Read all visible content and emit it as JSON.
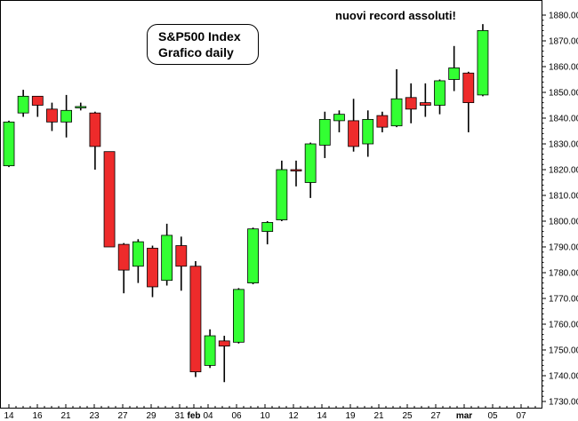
{
  "title_box": {
    "line1": "S&P500 Index",
    "line2": "Grafico daily"
  },
  "annotation": "nuovi record assoluti!",
  "chart_data": {
    "type": "candlestick",
    "y_axis": {
      "min": 1730,
      "max": 1880,
      "ticks": [
        1730,
        1740,
        1750,
        1760,
        1770,
        1780,
        1790,
        1800,
        1810,
        1820,
        1830,
        1840,
        1850,
        1860,
        1870,
        1880
      ],
      "position": "right",
      "format": "0.000"
    },
    "x_tick_labels": [
      "14",
      "16",
      "21",
      "23",
      "27",
      "29",
      "31",
      "feb",
      "04",
      "06",
      "10",
      "12",
      "14",
      "19",
      "21",
      "25",
      "27",
      "mar",
      "05",
      "07"
    ],
    "colors": {
      "up": "#33ff33",
      "down": "#ee2b2b",
      "wick": "#000000"
    },
    "candles": [
      {
        "o": 1821.5,
        "h": 1839.0,
        "l": 1821.0,
        "c": 1838.5
      },
      {
        "o": 1842.0,
        "h": 1851.0,
        "l": 1840.5,
        "c": 1848.5
      },
      {
        "o": 1848.5,
        "h": 1848.5,
        "l": 1840.5,
        "c": 1845.0
      },
      {
        "o": 1843.5,
        "h": 1846.0,
        "l": 1835.0,
        "c": 1838.5
      },
      {
        "o": 1838.5,
        "h": 1849.0,
        "l": 1832.5,
        "c": 1843.0
      },
      {
        "o": 1844.5,
        "h": 1846.0,
        "l": 1843.0,
        "c": 1844.5
      },
      {
        "o": 1842.0,
        "h": 1842.5,
        "l": 1820.0,
        "c": 1829.0
      },
      {
        "o": 1827.0,
        "h": 1827.0,
        "l": 1790.0,
        "c": 1790.0
      },
      {
        "o": 1791.0,
        "h": 1791.5,
        "l": 1772.0,
        "c": 1781.0
      },
      {
        "o": 1782.5,
        "h": 1793.0,
        "l": 1776.0,
        "c": 1792.0
      },
      {
        "o": 1789.5,
        "h": 1790.5,
        "l": 1770.5,
        "c": 1774.5
      },
      {
        "o": 1777.0,
        "h": 1799.0,
        "l": 1775.0,
        "c": 1794.5
      },
      {
        "o": 1790.5,
        "h": 1794.0,
        "l": 1773.0,
        "c": 1782.5
      },
      {
        "o": 1782.5,
        "h": 1784.5,
        "l": 1739.5,
        "c": 1741.5
      },
      {
        "o": 1744.0,
        "h": 1758.0,
        "l": 1743.0,
        "c": 1755.5
      },
      {
        "o": 1753.5,
        "h": 1755.5,
        "l": 1737.5,
        "c": 1751.5
      },
      {
        "o": 1753.0,
        "h": 1774.0,
        "l": 1752.5,
        "c": 1773.5
      },
      {
        "o": 1776.0,
        "h": 1797.5,
        "l": 1775.5,
        "c": 1797.0
      },
      {
        "o": 1796.0,
        "h": 1800.0,
        "l": 1791.0,
        "c": 1799.5
      },
      {
        "o": 1800.5,
        "h": 1823.5,
        "l": 1800.0,
        "c": 1820.0
      },
      {
        "o": 1820.0,
        "h": 1823.5,
        "l": 1813.5,
        "c": 1819.5
      },
      {
        "o": 1815.0,
        "h": 1830.5,
        "l": 1809.0,
        "c": 1830.0
      },
      {
        "o": 1829.5,
        "h": 1842.5,
        "l": 1824.5,
        "c": 1839.5
      },
      {
        "o": 1839.0,
        "h": 1843.0,
        "l": 1834.5,
        "c": 1841.5
      },
      {
        "o": 1839.0,
        "h": 1847.5,
        "l": 1827.0,
        "c": 1829.0
      },
      {
        "o": 1830.0,
        "h": 1843.0,
        "l": 1825.0,
        "c": 1839.5
      },
      {
        "o": 1841.0,
        "h": 1842.5,
        "l": 1834.5,
        "c": 1836.5
      },
      {
        "o": 1837.0,
        "h": 1859.0,
        "l": 1836.5,
        "c": 1847.5
      },
      {
        "o": 1848.0,
        "h": 1853.5,
        "l": 1838.0,
        "c": 1843.5
      },
      {
        "o": 1846.0,
        "h": 1853.5,
        "l": 1840.5,
        "c": 1845.0
      },
      {
        "o": 1845.0,
        "h": 1855.0,
        "l": 1841.5,
        "c": 1854.5
      },
      {
        "o": 1855.0,
        "h": 1868.0,
        "l": 1850.5,
        "c": 1859.5
      },
      {
        "o": 1857.5,
        "h": 1858.0,
        "l": 1834.5,
        "c": 1846.0
      },
      {
        "o": 1849.0,
        "h": 1876.5,
        "l": 1848.5,
        "c": 1874.0
      }
    ]
  }
}
